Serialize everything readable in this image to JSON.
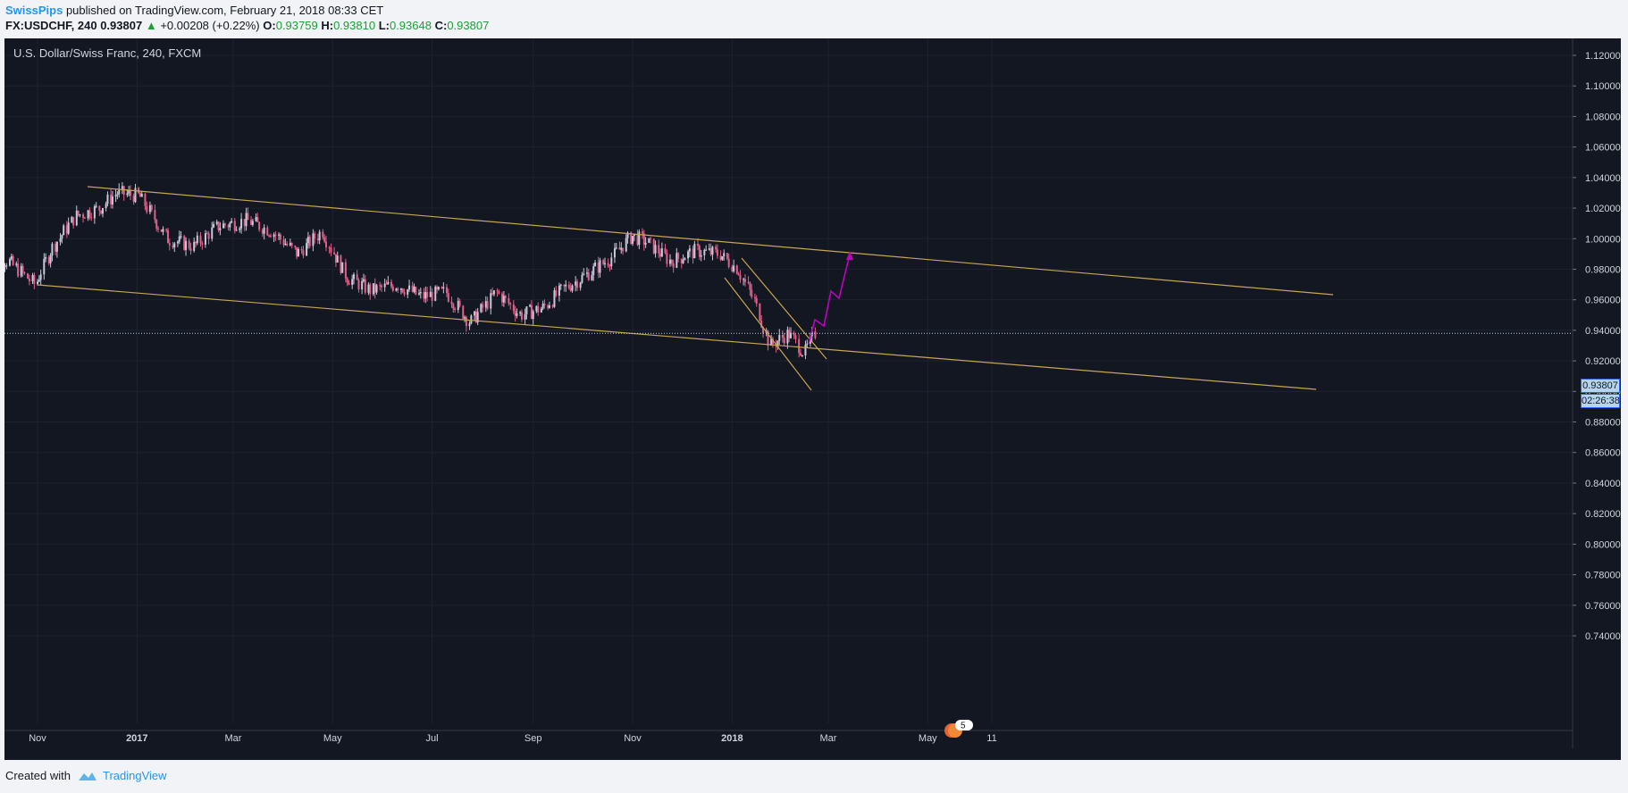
{
  "header": {
    "author": "SwissPips",
    "published_text": "published on TradingView.com, February 21, 2018 08:33 CET",
    "symbol_interval": "FX:USDCHF, 240",
    "last_price": "0.93807",
    "change": "+0.00208 (+0.22%)",
    "open_label": "O:",
    "open_value": "0.93759",
    "high_label": "H:",
    "high_value": "0.93810",
    "low_label": "L:",
    "low_value": "0.93648",
    "close_label": "C:",
    "close_value": "0.93807"
  },
  "chart": {
    "title": "U.S. Dollar/Swiss Franc, 240, FXCM",
    "current_price_label": "0.93807",
    "countdown_label": "02:26:38",
    "events_count": "5",
    "colors": {
      "background": "#131722",
      "trendline": "#c9a552",
      "projection": "#c000c0",
      "candle_up": "#c8c8d8",
      "candle_down": "#e0608a",
      "grid": "#1e2230"
    }
  },
  "chart_data": {
    "type": "line",
    "title": "U.S. Dollar/Swiss Franc, 240, FXCM",
    "xlabel": "",
    "ylabel": "",
    "ylim": [
      0.73,
      1.125
    ],
    "grid": true,
    "legend": "none",
    "x_ticks": [
      "Nov",
      "2017",
      "Mar",
      "May",
      "Jul",
      "Sep",
      "Nov",
      "2018",
      "Mar",
      "May",
      "11"
    ],
    "y_ticks": [
      "1.12000",
      "1.10000",
      "1.08000",
      "1.06000",
      "1.04000",
      "1.02000",
      "1.00000",
      "0.98000",
      "0.96000",
      "0.94000",
      "0.92000",
      "0.90000",
      "0.88000",
      "0.86000",
      "0.84000",
      "0.82000",
      "0.80000",
      "0.78000",
      "0.76000",
      "0.74000"
    ],
    "current_price": 0.93807,
    "series": [
      {
        "x": [
          "2016-10-01",
          "2016-10-15",
          "2016-10-31",
          "2016-11-10",
          "2016-11-25",
          "2016-12-10",
          "2016-12-20",
          "2017-01-03",
          "2017-01-20",
          "2017-02-05",
          "2017-02-20",
          "2017-03-10",
          "2017-03-25",
          "2017-04-10",
          "2017-04-25",
          "2017-05-10",
          "2017-05-25",
          "2017-06-10",
          "2017-06-25",
          "2017-07-10",
          "2017-07-25",
          "2017-08-10",
          "2017-08-25",
          "2017-09-08",
          "2017-09-20",
          "2017-10-05",
          "2017-10-20",
          "2017-11-01",
          "2017-11-10",
          "2017-11-25",
          "2017-12-10",
          "2017-12-25",
          "2018-01-05",
          "2018-01-15",
          "2018-01-25",
          "2018-02-05",
          "2018-02-15",
          "2018-02-21"
        ],
        "values": [
          0.99,
          0.985,
          0.97,
          0.993,
          1.015,
          1.02,
          1.03,
          1.028,
          1.0,
          0.995,
          1.008,
          1.012,
          1.005,
          0.99,
          1.005,
          0.975,
          0.966,
          0.97,
          0.962,
          0.965,
          0.945,
          0.965,
          0.95,
          0.955,
          0.967,
          0.977,
          0.988,
          1.002,
          0.998,
          0.985,
          0.992,
          0.99,
          0.98,
          0.96,
          0.93,
          0.938,
          0.925,
          0.938
        ]
      }
    ]
  }
}
